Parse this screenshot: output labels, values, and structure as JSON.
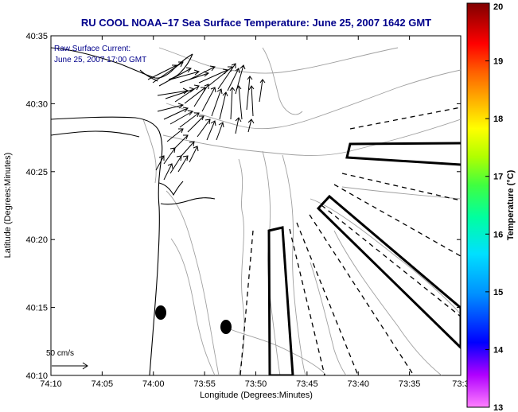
{
  "title": "RU COOL  NOAA–17  Sea Surface Temperature:  June 25, 2007 1642 GMT",
  "annotation": {
    "line1": "Raw Surface Current:",
    "line2": "June 25, 2007 17:00 GMT"
  },
  "scale_label": "50 cm/s",
  "x_axis": {
    "title": "Longitude (Degrees:Minutes)",
    "ticks": [
      "74:10",
      "74:05",
      "74:00",
      "73:55",
      "73:50",
      "73:45",
      "73:40",
      "73:35",
      "73:3"
    ]
  },
  "y_axis": {
    "title": "Latitude (Degrees:Minutes)",
    "ticks": [
      "40:35",
      "40:30",
      "40:25",
      "40:20",
      "40:15",
      "40:10"
    ]
  },
  "colorbar": {
    "title": "Temperature (°C)",
    "ticks": [
      "20",
      "19",
      "18",
      "17",
      "16",
      "15",
      "14",
      "13"
    ],
    "range": [
      13,
      20
    ],
    "colors": [
      "#ff00ff",
      "#9000ff",
      "#0000ff",
      "#0090ff",
      "#00e0ff",
      "#00ffa0",
      "#40ff40",
      "#b0ff00",
      "#ffff00",
      "#ffb000",
      "#ff6000",
      "#ff0000",
      "#c00000",
      "#800000"
    ]
  },
  "colors": {
    "title": "#00008b",
    "contour": "#a0a0a0",
    "coast": "#000000"
  }
}
